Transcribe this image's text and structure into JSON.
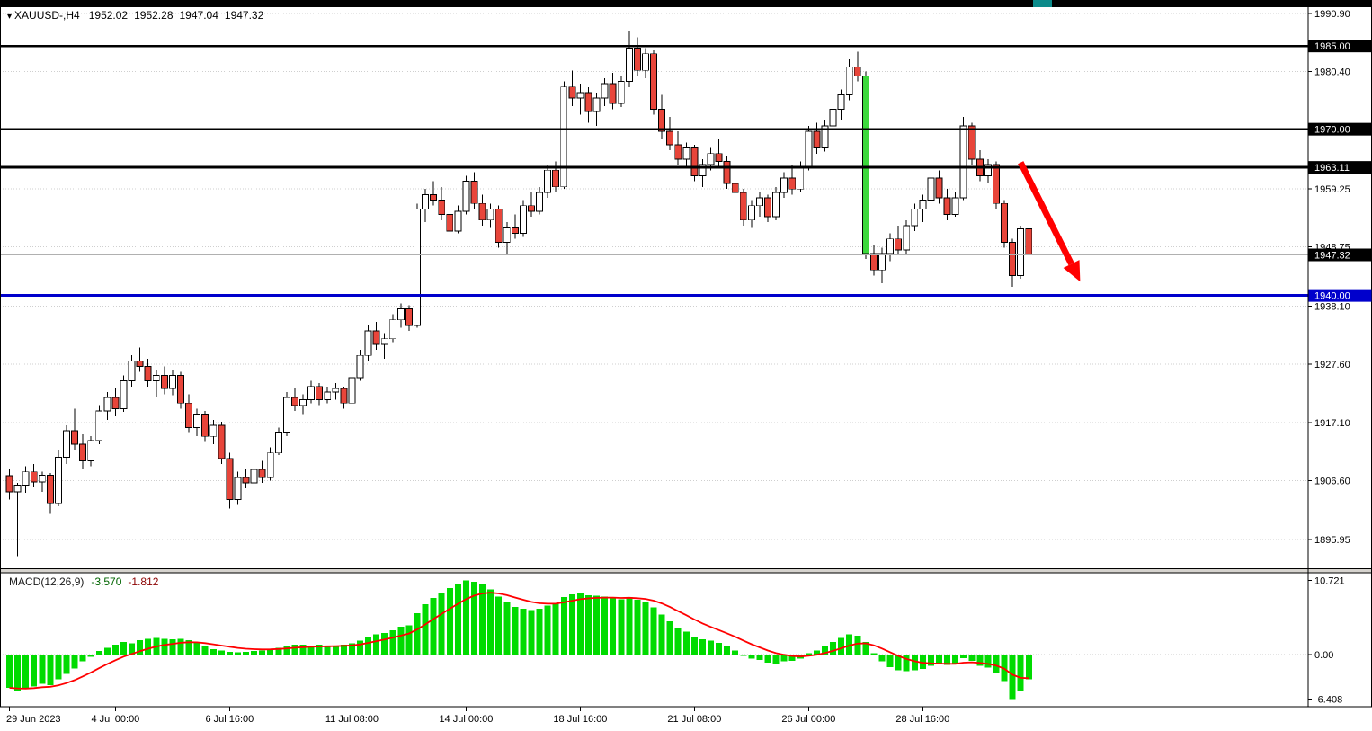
{
  "window": {
    "top_strip": {
      "color": "#000000",
      "accent_color": "#0b8a8a"
    }
  },
  "header": {
    "collapse_icon": "▾",
    "symbol_period": "XAUUSD-,H4",
    "open": "1952.02",
    "high": "1952.28",
    "low": "1947.04",
    "close": "1947.32"
  },
  "macd_panel": {
    "label": "MACD(12,26,9)",
    "main_value": "-3.570",
    "signal_value": "-1.812",
    "ticks": [
      {
        "value": 10.721,
        "label": "10.721"
      },
      {
        "value": 0,
        "label": "0.00"
      },
      {
        "value": -6.408,
        "label": "-6.408"
      }
    ]
  },
  "price_axis": {
    "plain_labels": [
      {
        "price": 1990.9,
        "label": "1990.90"
      },
      {
        "price": 1980.4,
        "label": "1980.40"
      },
      {
        "price": 1959.25,
        "label": "1959.25"
      },
      {
        "price": 1948.75,
        "label": "1948.75"
      },
      {
        "price": 1938.1,
        "label": "1938.10"
      },
      {
        "price": 1927.6,
        "label": "1927.60"
      },
      {
        "price": 1917.1,
        "label": "1917.10"
      },
      {
        "price": 1906.6,
        "label": "1906.60"
      },
      {
        "price": 1895.95,
        "label": "1895.95"
      }
    ],
    "boxed_labels": [
      {
        "price": 1985.0,
        "label": "1985.00",
        "bg": "#000000",
        "fg": "#ffffff"
      },
      {
        "price": 1970.0,
        "label": "1970.00",
        "bg": "#000000",
        "fg": "#ffffff"
      },
      {
        "price": 1963.11,
        "label": "1963.11",
        "bg": "#000000",
        "fg": "#ffffff"
      },
      {
        "price": 1947.32,
        "label": "1947.32",
        "bg": "#000000",
        "fg": "#ffffff"
      },
      {
        "price": 1940.0,
        "label": "1940.00",
        "bg": "#0000cc",
        "fg": "#ffffff"
      }
    ]
  },
  "time_axis": {
    "labels": [
      {
        "index": 0,
        "label": "29 Jun 2023"
      },
      {
        "index": 13,
        "label": "4 Jul 00:00"
      },
      {
        "index": 27,
        "label": "6 Jul 16:00"
      },
      {
        "index": 42,
        "label": "11 Jul 08:00"
      },
      {
        "index": 56,
        "label": "14 Jul 00:00"
      },
      {
        "index": 70,
        "label": "18 Jul 16:00"
      },
      {
        "index": 84,
        "label": "21 Jul 08:00"
      },
      {
        "index": 98,
        "label": "26 Jul 00:00"
      },
      {
        "index": 112,
        "label": "28 Jul 16:00"
      }
    ]
  },
  "chart_data": {
    "type": "candlestick",
    "symbol": "XAUUSD-",
    "timeframe": "H4",
    "last_ohlc": {
      "open": 1952.02,
      "high": 1952.28,
      "low": 1947.04,
      "close": 1947.32
    },
    "y_axis": {
      "top_price": 1992.0,
      "bottom_price": 1890.8,
      "grid_prices": [
        1990.9,
        1980.4,
        1969.9,
        1959.25,
        1948.75,
        1938.1,
        1927.6,
        1917.1,
        1906.6,
        1895.95
      ]
    },
    "hlines": [
      {
        "price": 1985.0,
        "color": "#000000",
        "width": 2.8
      },
      {
        "price": 1970.0,
        "color": "#000000",
        "width": 2.8
      },
      {
        "price": 1963.11,
        "color": "#000000",
        "width": 2.8
      },
      {
        "price": 1940.0,
        "color": "#0000cc",
        "width": 3.2
      }
    ],
    "bid_line": {
      "price": 1947.32,
      "color": "#b0b0b0"
    },
    "arrow": {
      "from_index": 124.0,
      "from_price": 1964.0,
      "to_index": 131.3,
      "to_price": 1942.5,
      "color": "#ff0000"
    },
    "candle_colors": {
      "up": "#ffffff",
      "down": "#e8453a",
      "border": "#000000",
      "wick": "#000000",
      "overrides": {
        "105": "#3cd83c"
      }
    },
    "candles": [
      [
        1907.5,
        1908.6,
        1903.2,
        1904.6
      ],
      [
        1904.6,
        1906.2,
        1893.0,
        1905.8
      ],
      [
        1905.8,
        1909.2,
        1904.4,
        1908.2
      ],
      [
        1908.2,
        1909.6,
        1905.4,
        1906.4
      ],
      [
        1906.4,
        1908.2,
        1904.6,
        1907.6
      ],
      [
        1907.6,
        1908.0,
        1900.6,
        1902.6
      ],
      [
        1902.6,
        1912.2,
        1902.0,
        1910.8
      ],
      [
        1910.8,
        1916.6,
        1909.6,
        1915.6
      ],
      [
        1915.6,
        1919.6,
        1912.2,
        1913.2
      ],
      [
        1913.2,
        1915.0,
        1908.6,
        1910.2
      ],
      [
        1910.2,
        1914.6,
        1909.2,
        1913.8
      ],
      [
        1913.8,
        1920.2,
        1913.2,
        1919.2
      ],
      [
        1919.2,
        1922.6,
        1917.6,
        1921.6
      ],
      [
        1921.6,
        1923.2,
        1918.2,
        1919.6
      ],
      [
        1919.6,
        1925.6,
        1919.0,
        1924.6
      ],
      [
        1924.6,
        1929.2,
        1923.6,
        1928.2
      ],
      [
        1928.2,
        1930.6,
        1926.2,
        1927.2
      ],
      [
        1927.2,
        1928.6,
        1923.6,
        1924.6
      ],
      [
        1924.6,
        1926.6,
        1921.6,
        1925.6
      ],
      [
        1925.6,
        1927.2,
        1922.2,
        1923.2
      ],
      [
        1923.2,
        1926.6,
        1922.0,
        1925.6
      ],
      [
        1925.6,
        1926.2,
        1919.6,
        1920.6
      ],
      [
        1920.6,
        1922.2,
        1915.2,
        1916.2
      ],
      [
        1916.2,
        1919.6,
        1914.6,
        1918.6
      ],
      [
        1918.6,
        1919.2,
        1913.6,
        1914.6
      ],
      [
        1914.6,
        1917.6,
        1913.2,
        1916.6
      ],
      [
        1916.6,
        1917.2,
        1909.6,
        1910.6
      ],
      [
        1910.6,
        1911.6,
        1901.6,
        1903.2
      ],
      [
        1903.2,
        1908.2,
        1902.2,
        1907.2
      ],
      [
        1907.2,
        1908.6,
        1905.2,
        1906.2
      ],
      [
        1906.2,
        1909.6,
        1905.6,
        1908.6
      ],
      [
        1908.6,
        1910.2,
        1906.2,
        1907.2
      ],
      [
        1907.2,
        1912.6,
        1906.6,
        1911.6
      ],
      [
        1911.6,
        1916.2,
        1911.2,
        1915.2
      ],
      [
        1915.2,
        1922.6,
        1914.6,
        1921.6
      ],
      [
        1921.6,
        1923.2,
        1919.2,
        1920.2
      ],
      [
        1920.2,
        1922.2,
        1918.6,
        1921.2
      ],
      [
        1921.2,
        1924.6,
        1920.6,
        1923.6
      ],
      [
        1923.6,
        1924.2,
        1920.2,
        1921.2
      ],
      [
        1921.2,
        1923.6,
        1920.6,
        1922.6
      ],
      [
        1922.6,
        1924.2,
        1921.2,
        1923.2
      ],
      [
        1923.2,
        1923.6,
        1919.6,
        1920.6
      ],
      [
        1920.6,
        1926.2,
        1920.2,
        1925.2
      ],
      [
        1925.2,
        1930.2,
        1924.6,
        1929.2
      ],
      [
        1929.2,
        1934.6,
        1928.2,
        1933.6
      ],
      [
        1933.6,
        1935.2,
        1930.2,
        1931.2
      ],
      [
        1931.2,
        1933.2,
        1928.6,
        1932.2
      ],
      [
        1932.2,
        1936.6,
        1931.6,
        1935.6
      ],
      [
        1935.6,
        1938.6,
        1934.2,
        1937.6
      ],
      [
        1937.6,
        1938.2,
        1933.6,
        1934.6
      ],
      [
        1934.6,
        1956.6,
        1934.2,
        1955.6
      ],
      [
        1955.6,
        1959.2,
        1953.2,
        1958.2
      ],
      [
        1958.2,
        1960.6,
        1956.2,
        1957.2
      ],
      [
        1957.2,
        1959.6,
        1953.6,
        1954.6
      ],
      [
        1954.6,
        1957.2,
        1950.6,
        1951.6
      ],
      [
        1951.6,
        1956.2,
        1951.2,
        1955.2
      ],
      [
        1955.2,
        1961.6,
        1954.6,
        1960.6
      ],
      [
        1960.6,
        1962.2,
        1955.6,
        1956.6
      ],
      [
        1956.6,
        1958.2,
        1952.6,
        1953.6
      ],
      [
        1953.6,
        1956.6,
        1952.2,
        1955.6
      ],
      [
        1955.6,
        1956.2,
        1948.6,
        1949.6
      ],
      [
        1949.6,
        1953.2,
        1947.6,
        1952.2
      ],
      [
        1952.2,
        1954.6,
        1950.2,
        1951.2
      ],
      [
        1951.2,
        1957.2,
        1950.6,
        1956.2
      ],
      [
        1956.2,
        1958.6,
        1954.2,
        1955.2
      ],
      [
        1955.2,
        1959.6,
        1954.6,
        1958.6
      ],
      [
        1958.6,
        1963.6,
        1957.6,
        1962.6
      ],
      [
        1962.6,
        1964.2,
        1958.6,
        1959.6
      ],
      [
        1959.6,
        1978.6,
        1959.2,
        1977.6
      ],
      [
        1977.6,
        1980.6,
        1974.2,
        1975.6
      ],
      [
        1975.6,
        1978.2,
        1972.6,
        1976.6
      ],
      [
        1976.6,
        1977.6,
        1971.2,
        1973.2
      ],
      [
        1973.2,
        1976.6,
        1970.6,
        1975.6
      ],
      [
        1975.6,
        1979.2,
        1974.2,
        1978.2
      ],
      [
        1978.2,
        1980.2,
        1973.6,
        1974.6
      ],
      [
        1974.6,
        1979.6,
        1974.0,
        1978.6
      ],
      [
        1978.6,
        1987.6,
        1977.6,
        1984.6
      ],
      [
        1984.6,
        1986.6,
        1979.6,
        1980.6
      ],
      [
        1980.6,
        1984.6,
        1979.2,
        1983.6
      ],
      [
        1983.6,
        1984.2,
        1972.6,
        1973.6
      ],
      [
        1973.6,
        1976.2,
        1968.2,
        1969.6
      ],
      [
        1969.6,
        1972.2,
        1966.2,
        1967.2
      ],
      [
        1967.2,
        1969.6,
        1963.6,
        1964.6
      ],
      [
        1964.6,
        1967.6,
        1963.2,
        1966.6
      ],
      [
        1966.6,
        1967.2,
        1960.6,
        1961.6
      ],
      [
        1961.6,
        1964.6,
        1959.6,
        1963.6
      ],
      [
        1963.6,
        1966.6,
        1962.6,
        1965.6
      ],
      [
        1965.6,
        1968.2,
        1963.2,
        1964.2
      ],
      [
        1964.2,
        1965.2,
        1959.2,
        1960.2
      ],
      [
        1960.2,
        1962.6,
        1957.6,
        1958.6
      ],
      [
        1958.6,
        1959.2,
        1952.6,
        1953.6
      ],
      [
        1953.6,
        1957.2,
        1952.2,
        1956.2
      ],
      [
        1956.2,
        1958.6,
        1954.2,
        1957.6
      ],
      [
        1957.6,
        1958.2,
        1953.2,
        1954.2
      ],
      [
        1954.2,
        1959.6,
        1953.6,
        1958.6
      ],
      [
        1958.6,
        1962.2,
        1957.6,
        1961.2
      ],
      [
        1961.2,
        1963.6,
        1958.2,
        1959.2
      ],
      [
        1959.2,
        1964.2,
        1958.6,
        1963.2
      ],
      [
        1963.2,
        1970.6,
        1962.6,
        1969.6
      ],
      [
        1969.6,
        1971.2,
        1965.6,
        1966.6
      ],
      [
        1966.6,
        1971.6,
        1966.0,
        1970.6
      ],
      [
        1970.6,
        1974.6,
        1969.2,
        1973.6
      ],
      [
        1973.6,
        1977.2,
        1971.6,
        1976.2
      ],
      [
        1976.2,
        1982.6,
        1975.2,
        1981.2
      ],
      [
        1981.2,
        1984.0,
        1978.6,
        1979.6
      ],
      [
        1979.6,
        1980.4,
        1946.6,
        1947.6
      ],
      [
        1947.6,
        1949.2,
        1943.6,
        1944.6
      ],
      [
        1944.6,
        1948.6,
        1942.2,
        1947.6
      ],
      [
        1947.6,
        1951.2,
        1946.2,
        1950.2
      ],
      [
        1950.2,
        1952.6,
        1947.2,
        1948.2
      ],
      [
        1948.2,
        1953.6,
        1947.6,
        1952.6
      ],
      [
        1952.6,
        1956.6,
        1951.6,
        1955.6
      ],
      [
        1955.6,
        1958.2,
        1953.2,
        1957.2
      ],
      [
        1957.2,
        1962.2,
        1956.2,
        1961.2
      ],
      [
        1961.2,
        1962.6,
        1956.6,
        1957.6
      ],
      [
        1957.6,
        1959.2,
        1953.6,
        1954.6
      ],
      [
        1954.6,
        1958.6,
        1954.2,
        1957.6
      ],
      [
        1957.6,
        1972.2,
        1957.2,
        1970.6
      ],
      [
        1970.6,
        1971.2,
        1963.6,
        1964.6
      ],
      [
        1964.6,
        1966.2,
        1960.6,
        1961.6
      ],
      [
        1961.6,
        1964.6,
        1960.2,
        1963.6
      ],
      [
        1963.6,
        1964.2,
        1955.6,
        1956.6
      ],
      [
        1956.6,
        1957.2,
        1948.6,
        1949.6
      ],
      [
        1949.6,
        1950.2,
        1941.6,
        1943.6
      ],
      [
        1943.6,
        1952.6,
        1943.0,
        1952.02
      ],
      [
        1952.02,
        1952.28,
        1947.04,
        1947.32
      ]
    ],
    "macd": {
      "label": "MACD(12,26,9)",
      "main_value": -3.57,
      "signal_value": -1.812,
      "histogram_color": "#00db00",
      "signal_color": "#ff0000",
      "signal_ema_period": 9,
      "histogram": [
        -4.8,
        -5.2,
        -5.0,
        -4.6,
        -4.2,
        -4.4,
        -3.6,
        -2.8,
        -2.0,
        -1.0,
        -0.3,
        0.5,
        1.0,
        1.4,
        1.8,
        1.6,
        2.1,
        2.3,
        2.4,
        2.3,
        2.2,
        2.3,
        2.1,
        1.7,
        1.2,
        0.8,
        0.6,
        0.4,
        0.3,
        0.4,
        0.5,
        0.6,
        0.8,
        1.0,
        1.2,
        1.4,
        1.4,
        1.3,
        1.4,
        1.3,
        1.3,
        1.4,
        1.6,
        2.0,
        2.6,
        2.9,
        3.1,
        3.5,
        4.0,
        4.2,
        6.0,
        7.3,
        8.2,
        8.9,
        9.6,
        10.2,
        10.72,
        10.5,
        10.1,
        9.4,
        8.4,
        7.6,
        6.9,
        6.6,
        6.4,
        6.6,
        7.1,
        7.4,
        8.3,
        8.7,
        8.9,
        8.6,
        8.5,
        8.4,
        8.2,
        8.0,
        8.3,
        7.9,
        7.6,
        6.8,
        5.8,
        4.8,
        3.9,
        3.3,
        2.6,
        2.2,
        2.0,
        1.7,
        1.2,
        0.6,
        -0.2,
        -0.6,
        -0.8,
        -1.2,
        -1.3,
        -1.0,
        -0.9,
        -0.6,
        0.2,
        0.6,
        1.2,
        1.8,
        2.4,
        2.9,
        2.7,
        1.8,
        0.2,
        -1.0,
        -1.8,
        -2.3,
        -2.4,
        -2.3,
        -2.1,
        -1.6,
        -1.4,
        -1.5,
        -1.3,
        -0.5,
        -0.9,
        -1.6,
        -1.9,
        -2.6,
        -3.8,
        -6.408,
        -5.2,
        -3.57
      ],
      "y_range": [
        -6.408,
        10.721
      ]
    }
  }
}
